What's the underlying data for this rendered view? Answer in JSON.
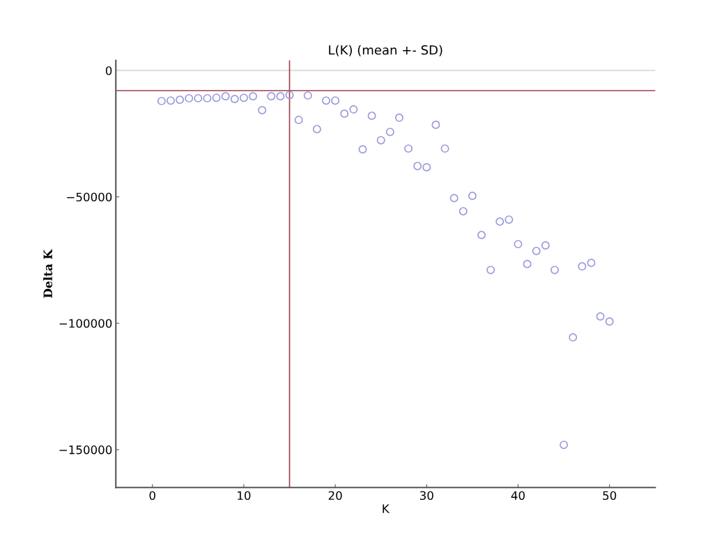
{
  "chart_data": {
    "type": "scatter",
    "title": "L(K) (mean +- SD)",
    "xlabel": "K",
    "ylabel": "Delta K",
    "x": [
      1,
      2,
      3,
      4,
      5,
      6,
      7,
      8,
      9,
      10,
      11,
      12,
      13,
      14,
      15,
      16,
      17,
      18,
      19,
      20,
      21,
      22,
      23,
      24,
      25,
      26,
      27,
      28,
      29,
      30,
      31,
      32,
      33,
      34,
      35,
      36,
      37,
      38,
      39,
      40,
      41,
      42,
      43,
      44,
      45,
      46,
      47,
      48,
      49,
      50
    ],
    "series": [
      {
        "color": "#9999dd",
        "values": [
          -12100,
          -11900,
          -11600,
          -11000,
          -11000,
          -11000,
          -10800,
          -10200,
          -11300,
          -10800,
          -10200,
          -15700,
          -10200,
          -10200,
          -9700,
          -19600,
          -9900,
          -23200,
          -11900,
          -11900,
          -17100,
          -15400,
          -31200,
          -17900,
          -27600,
          -24300,
          -18700,
          -30900,
          -37800,
          -38300,
          -21500,
          -30900,
          -50500,
          -55700,
          -49600,
          -65100,
          -78900,
          -59800,
          -59000,
          -68700,
          -76600,
          -71400,
          -69200,
          -78900,
          -148100,
          -105600,
          -77500,
          -76100,
          -97300,
          -99300
        ]
      }
    ],
    "marker": "circle",
    "xlim": [
      -4,
      55
    ],
    "ylim": [
      -165000,
      4000
    ],
    "xticks": [
      0,
      10,
      20,
      30,
      40,
      50
    ],
    "yticks": [
      {
        "value": 0,
        "label": "0"
      },
      {
        "value": -50000,
        "label": "−50000"
      },
      {
        "value": -100000,
        "label": "−100000"
      },
      {
        "value": -150000,
        "label": "−150000"
      }
    ],
    "ref_lines": [
      {
        "axis": "y",
        "value": 0,
        "color": "#dddddd"
      },
      {
        "axis": "y",
        "value": -8000,
        "color": "#a04050"
      },
      {
        "axis": "x",
        "value": 15,
        "color": "#a04050"
      }
    ],
    "grid": false,
    "legend": false
  }
}
